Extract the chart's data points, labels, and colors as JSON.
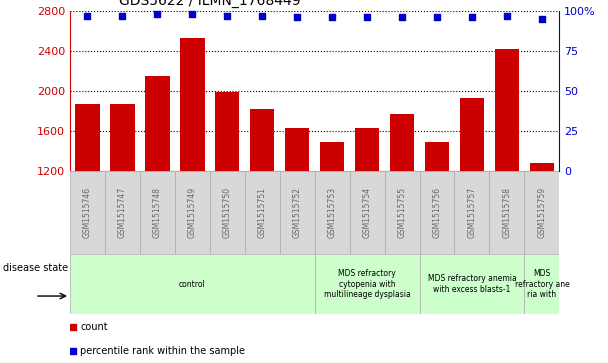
{
  "title": "GDS5622 / ILMN_1768449",
  "samples": [
    "GSM1515746",
    "GSM1515747",
    "GSM1515748",
    "GSM1515749",
    "GSM1515750",
    "GSM1515751",
    "GSM1515752",
    "GSM1515753",
    "GSM1515754",
    "GSM1515755",
    "GSM1515756",
    "GSM1515757",
    "GSM1515758",
    "GSM1515759"
  ],
  "counts": [
    1870,
    1870,
    2150,
    2530,
    1985,
    1820,
    1625,
    1490,
    1625,
    1770,
    1490,
    1930,
    2420,
    1275
  ],
  "percentile_ranks": [
    97,
    97,
    98,
    98,
    97,
    97,
    96,
    96,
    96,
    96,
    96,
    96,
    97,
    95
  ],
  "ylim_left": [
    1200,
    2800
  ],
  "ylim_right": [
    0,
    100
  ],
  "yticks_left": [
    1200,
    1600,
    2000,
    2400,
    2800
  ],
  "yticks_right": [
    0,
    25,
    50,
    75,
    100
  ],
  "bar_color": "#cc0000",
  "dot_color": "#0000cc",
  "grid_color": "#000000",
  "background_color": "#ffffff",
  "group_starts": [
    0,
    7,
    10,
    13
  ],
  "group_ends": [
    7,
    10,
    13,
    14
  ],
  "group_labels": [
    "control",
    "MDS refractory\ncytopenia with\nmultilineage dysplasia",
    "MDS refractory anemia\nwith excess blasts-1",
    "MDS\nrefractory ane\nria with"
  ],
  "group_color": "#ccffcc",
  "sample_box_color": "#d8d8d8",
  "tick_label_color": "#666666",
  "left_axis_color": "#cc0000",
  "right_axis_color": "#0000cc",
  "legend_count_label": "count",
  "legend_percentile_label": "percentile rank within the sample",
  "disease_state_label": "disease state"
}
